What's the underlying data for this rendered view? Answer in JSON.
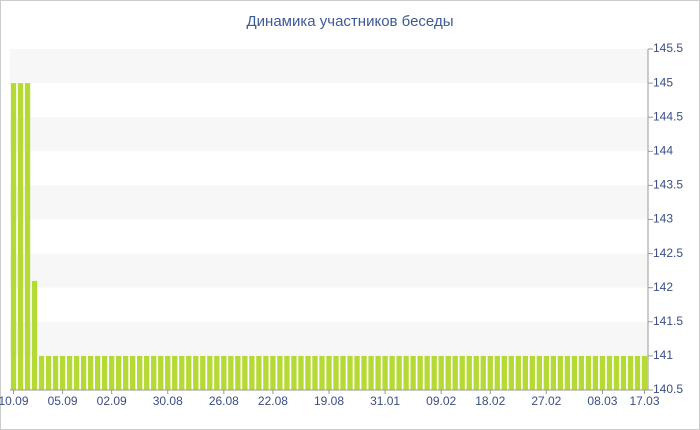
{
  "chart_data": {
    "type": "bar",
    "title": "Динамика участников беседы",
    "categories": [
      "10.09",
      null,
      null,
      null,
      null,
      null,
      null,
      "05.09",
      null,
      null,
      null,
      null,
      null,
      null,
      "02.09",
      null,
      null,
      null,
      null,
      null,
      null,
      null,
      "30.08",
      null,
      null,
      null,
      null,
      null,
      null,
      null,
      "26.08",
      null,
      null,
      null,
      null,
      null,
      null,
      "22.08",
      null,
      null,
      null,
      null,
      null,
      null,
      null,
      "19.08",
      null,
      null,
      null,
      null,
      null,
      null,
      null,
      "31.01",
      null,
      null,
      null,
      null,
      null,
      null,
      null,
      "09.02",
      null,
      null,
      null,
      null,
      null,
      null,
      "18.02",
      null,
      null,
      null,
      null,
      null,
      null,
      null,
      "27.02",
      null,
      null,
      null,
      null,
      null,
      null,
      null,
      "08.03",
      null,
      null,
      null,
      null,
      null,
      "17.03"
    ],
    "values": [
      145,
      145,
      145,
      142.1,
      141,
      141,
      141,
      141,
      141,
      141,
      141,
      141,
      141,
      141,
      141,
      141,
      141,
      141,
      141,
      141,
      141,
      141,
      141,
      141,
      141,
      141,
      141,
      141,
      141,
      141,
      141,
      141,
      141,
      141,
      141,
      141,
      141,
      141,
      141,
      141,
      141,
      141,
      141,
      141,
      141,
      141,
      141,
      141,
      141,
      141,
      141,
      141,
      141,
      141,
      141,
      141,
      141,
      141,
      141,
      141,
      141,
      141,
      141,
      141,
      141,
      141,
      141,
      141,
      141,
      141,
      141,
      141,
      141,
      141,
      141,
      141,
      141,
      141,
      141,
      141,
      141,
      141,
      141,
      141,
      141,
      141,
      141,
      141,
      141,
      141,
      141
    ],
    "color": "#b5d935",
    "ylim": [
      140.5,
      145.5
    ],
    "yticks": [
      140.5,
      141,
      141.5,
      142,
      142.5,
      143,
      143.5,
      144,
      144.5,
      145,
      145.5
    ],
    "grid": true
  }
}
